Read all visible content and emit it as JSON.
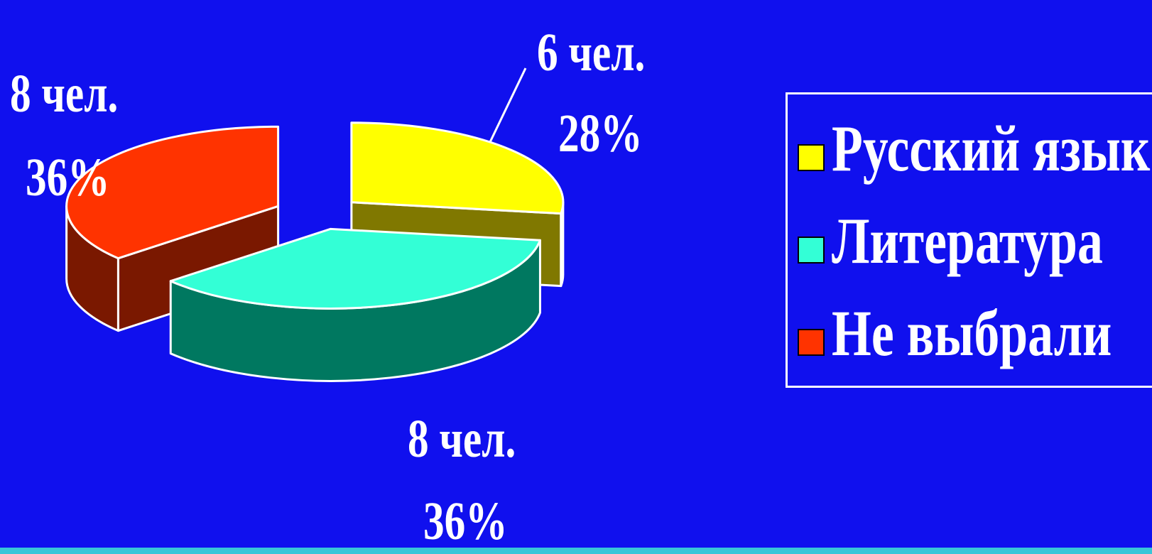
{
  "chart_data": {
    "type": "pie",
    "categories": [
      "Русский язык",
      "Литература",
      "Не выбрали"
    ],
    "values": [
      6,
      8,
      8
    ],
    "percent_labels": [
      "28%",
      "36%",
      "36%"
    ],
    "count_labels": [
      "6 чел.",
      "8 чел.",
      "8 чел."
    ],
    "colors": {
      "top": [
        "#ffff00",
        "#33ffd6",
        "#ff3300"
      ],
      "side": [
        "#807800",
        "#007860",
        "#7a1800"
      ]
    },
    "style": "3d-exploded",
    "legend_position": "right"
  },
  "background_color": "#1010ee"
}
